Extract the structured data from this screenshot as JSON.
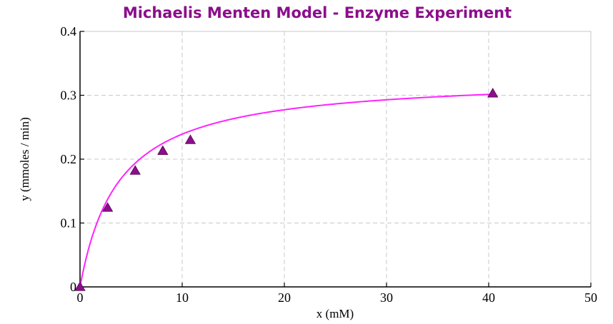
{
  "chart_data": {
    "type": "scatter",
    "title": "Michaelis Menten Model - Enzyme Experiment",
    "xlabel": "x (mM)",
    "ylabel": "y (mmoles / min)",
    "xlim": [
      0,
      50
    ],
    "ylim": [
      0,
      0.4
    ],
    "x_ticks": [
      "0",
      "10",
      "20",
      "30",
      "40",
      "50"
    ],
    "y_ticks": [
      "0",
      "0.1",
      "0.2",
      "0.3",
      "0.4"
    ],
    "grid": true,
    "points": [
      {
        "x": 0,
        "y": 0
      },
      {
        "x": 2.7,
        "y": 0.124
      },
      {
        "x": 5.4,
        "y": 0.182
      },
      {
        "x": 8.1,
        "y": 0.213
      },
      {
        "x": 10.8,
        "y": 0.23
      },
      {
        "x": 40.4,
        "y": 0.303
      }
    ],
    "fit": {
      "model": "michaelis-menten",
      "vmax": 0.33,
      "km": 3.8
    },
    "colors": {
      "title": "#8b0e8b",
      "curve": "#ff22ff",
      "marker": "#8b0e8b",
      "grid": "#c8c8c8"
    }
  }
}
